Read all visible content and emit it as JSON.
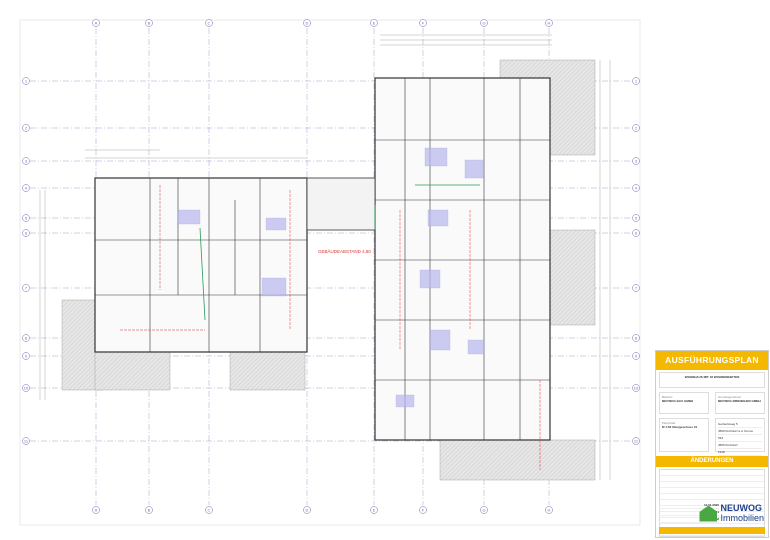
{
  "drawing": {
    "grid_columns": [
      "A",
      "B",
      "C",
      "D",
      "E",
      "F",
      "G",
      "H"
    ],
    "grid_rows": [
      "1",
      "2",
      "3",
      "4",
      "5",
      "6",
      "7",
      "8",
      "9",
      "10",
      "11"
    ],
    "annotation": "GEBÄUDEABSTAND 4,80",
    "colors": {
      "grid": "#6a6ab0",
      "wall": "#333333",
      "hatch": "#c8c8c8",
      "room_fill": "#b8b8f0",
      "red": "#e03030",
      "green": "#2a9a5a"
    }
  },
  "title_block": {
    "heading": "AUSFÜHRUNGSPLAN",
    "project": "WOHNHAUS MIT 18 WOHNEINHEITEN",
    "client_label": "Bauherr",
    "client": "NEUWOG BAU GMBH",
    "owner_label": "Grundeigentümer",
    "owner": "NEUWOG IMMOBILIEN GMBH",
    "plan_label": "Planinhalt",
    "plan": "M 1:50 Obergeschoss 01",
    "site_rows": [
      "Gerbertsweg 5",
      "4560 Kirchdorf a.d. Krems",
      "533",
      "4560 Kirchdorf",
      "1918"
    ],
    "changes_heading": "ÄNDERUNGEN",
    "meta_rows": [
      "12.01.2020",
      "AF11",
      "Dipl.Ing. Graf"
    ]
  },
  "logo": {
    "line1": "NEUWOG",
    "line2": "Immobilien",
    "color": "#1e3f8a",
    "accent": "#4aa844"
  }
}
